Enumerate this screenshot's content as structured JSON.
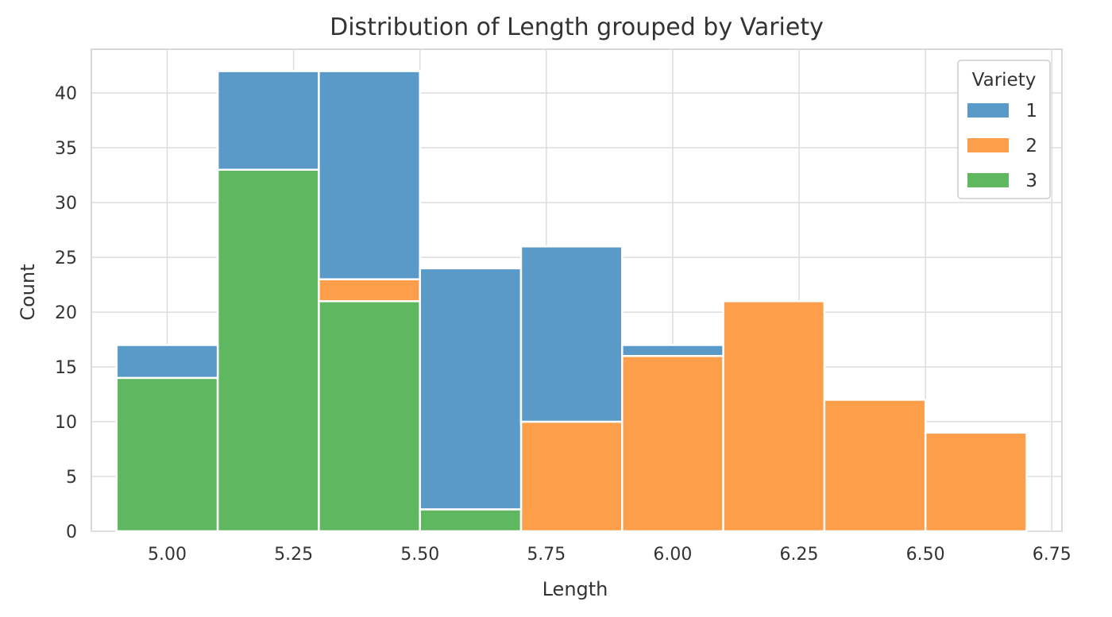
{
  "chart_data": {
    "type": "bar",
    "title": "Distribution of Length grouped by Variety",
    "xlabel": "Length",
    "ylabel": "Count",
    "xlim": [
      4.85,
      6.77
    ],
    "ylim": [
      0,
      44
    ],
    "xticks": [
      "5.00",
      "5.25",
      "5.50",
      "5.75",
      "6.00",
      "6.25",
      "6.50",
      "6.75"
    ],
    "xtick_values": [
      5.0,
      5.25,
      5.5,
      5.75,
      6.0,
      6.25,
      6.5,
      6.75
    ],
    "yticks": [
      "0",
      "5",
      "10",
      "15",
      "20",
      "25",
      "30",
      "35",
      "40"
    ],
    "ytick_values": [
      0,
      5,
      10,
      15,
      20,
      25,
      30,
      35,
      40
    ],
    "bin_edges": [
      4.9,
      5.1,
      5.3,
      5.5,
      5.7,
      5.9,
      6.1,
      6.3,
      6.5,
      6.7
    ],
    "stacked": true,
    "grid": true,
    "legend": {
      "title": "Variety",
      "placement": "top-right"
    },
    "series": [
      {
        "name": "3",
        "color": "#5fb760",
        "values": [
          14,
          33,
          21,
          2,
          0,
          0,
          0,
          0,
          0
        ]
      },
      {
        "name": "2",
        "color": "#fd9e4a",
        "values": [
          0,
          0,
          2,
          0,
          10,
          16,
          21,
          12,
          9
        ]
      },
      {
        "name": "1",
        "color": "#5a9ac8",
        "values": [
          3,
          9,
          19,
          22,
          16,
          1,
          0,
          0,
          0
        ]
      }
    ],
    "legend_order": [
      2,
      1,
      0
    ]
  }
}
